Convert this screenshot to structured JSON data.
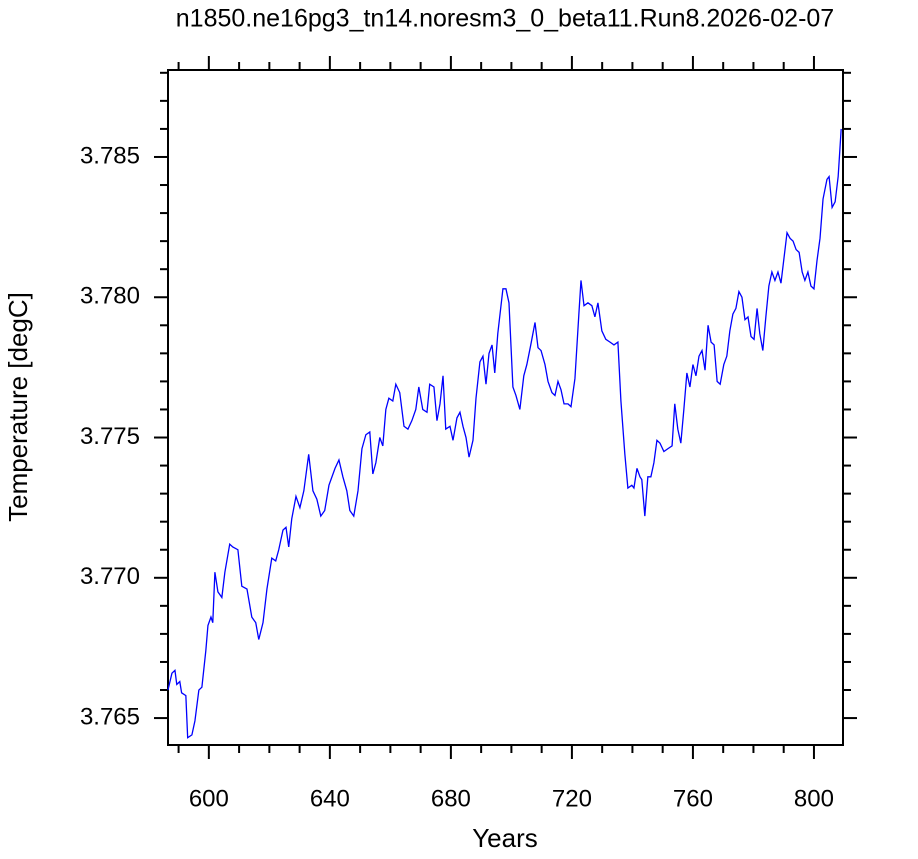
{
  "chart_data": {
    "type": "line",
    "title": "n1850.ne16pg3_tn14.noresm3_0_beta11.Run8.2026-02-07",
    "xlabel": "Years",
    "ylabel": "Temperature [degC]",
    "xlim": [
      586.5,
      809.6
    ],
    "ylim": [
      3.76404,
      3.7881
    ],
    "xticks": [
      600,
      640,
      680,
      720,
      760,
      800
    ],
    "yticks": [
      3.765,
      {
        "value": 3.77,
        "label": "3.770"
      },
      3.775,
      {
        "value": 3.78,
        "label": "3.780"
      },
      3.785
    ],
    "xminorticks": [
      590,
      610,
      620,
      630,
      650,
      660,
      670,
      690,
      700,
      710,
      730,
      740,
      750,
      770,
      780,
      790
    ],
    "yminorticks": [
      3.766,
      3.767,
      3.768,
      3.769,
      3.771,
      3.772,
      3.773,
      3.774,
      3.776,
      3.777,
      3.778,
      3.779,
      3.781,
      3.782,
      3.783,
      3.784,
      3.786,
      3.787,
      3.788
    ],
    "series": [
      {
        "color": "#0000ff",
        "x": [
          586.5,
          587.8,
          588.8,
          589.4,
          590.4,
          591,
          592.4,
          593,
          594.4,
          595.4,
          596.7,
          597.7,
          599,
          599.7,
          600.7,
          601.3,
          602,
          603,
          604.3,
          605.3,
          606.9,
          607.9,
          609.6,
          610.9,
          612.6,
          614.2,
          615.5,
          616.5,
          617.9,
          619.2,
          620.8,
          622.1,
          623.1,
          624.5,
          625.5,
          626.4,
          627.4,
          628.8,
          630.1,
          631.4,
          633,
          634.4,
          635.7,
          637,
          638.3,
          639.7,
          641.7,
          643,
          644.3,
          645.6,
          646.6,
          647.9,
          649.3,
          650.6,
          651.9,
          653.2,
          654.2,
          655.2,
          656.5,
          657.5,
          658.5,
          659.5,
          660.8,
          661.8,
          663.1,
          664.5,
          665.8,
          667.1,
          668.4,
          669.4,
          670.7,
          672.1,
          673,
          674.4,
          675.4,
          676.4,
          677.4,
          678.3,
          679.7,
          680.7,
          682,
          683,
          684,
          685,
          686,
          687.3,
          688.3,
          689.6,
          690.6,
          691.6,
          692.6,
          693.6,
          694.5,
          695.5,
          697.2,
          698.2,
          699.2,
          700.5,
          701.5,
          702.8,
          704.1,
          705.1,
          706.4,
          707.8,
          708.8,
          709.8,
          711.1,
          712.1,
          713.4,
          714.4,
          715.4,
          716.4,
          717.4,
          718.7,
          719.7,
          721,
          722.3,
          723,
          724,
          725.3,
          726.6,
          727.6,
          728.6,
          729.9,
          731.2,
          732.6,
          733.9,
          735.2,
          736.2,
          737.5,
          738.5,
          739.8,
          740.5,
          741.5,
          742.5,
          743.1,
          744.1,
          745.1,
          746.1,
          747.1,
          748.1,
          749.1,
          750.4,
          751.7,
          753.1,
          754,
          755,
          756,
          757,
          758,
          759,
          760,
          761,
          762,
          763,
          764,
          765,
          766,
          767,
          768,
          769,
          770.2,
          771.2,
          772.2,
          773.2,
          774.2,
          775.2,
          776.2,
          777.2,
          778.2,
          779.2,
          780.2,
          781.2,
          782.1,
          783.1,
          784.1,
          785.1,
          786.1,
          787.1,
          788.1,
          789.1,
          790.1,
          791.1,
          792.1,
          793.1,
          794.1,
          795.1,
          796.1,
          797,
          798,
          799,
          800,
          801,
          802,
          803,
          804.3,
          805,
          806,
          807,
          808,
          809
        ],
        "values": [
          3.766,
          3.7666,
          3.7667,
          3.7662,
          3.7663,
          3.7659,
          3.7658,
          3.7643,
          3.7644,
          3.7649,
          3.766,
          3.7661,
          3.7674,
          3.7683,
          3.7686,
          3.7684,
          3.7702,
          3.7695,
          3.7693,
          3.7702,
          3.7712,
          3.7711,
          3.771,
          3.7697,
          3.7696,
          3.7686,
          3.7684,
          3.7678,
          3.7684,
          3.7696,
          3.7707,
          3.7706,
          3.771,
          3.7717,
          3.7718,
          3.7711,
          3.7721,
          3.7729,
          3.7725,
          3.7731,
          3.7744,
          3.7731,
          3.7728,
          3.7722,
          3.7724,
          3.7733,
          3.7739,
          3.7742,
          3.7736,
          3.7731,
          3.7724,
          3.7722,
          3.7731,
          3.7746,
          3.7751,
          3.7752,
          3.7737,
          3.7741,
          3.775,
          3.7747,
          3.776,
          3.7764,
          3.7763,
          3.7769,
          3.7766,
          3.7754,
          3.7753,
          3.7756,
          3.776,
          3.7768,
          3.776,
          3.7759,
          3.7769,
          3.7768,
          3.7756,
          3.7762,
          3.7772,
          3.7753,
          3.7754,
          3.7749,
          3.7757,
          3.7759,
          3.7754,
          3.775,
          3.7743,
          3.7749,
          3.7764,
          3.7777,
          3.7779,
          3.7769,
          3.778,
          3.7783,
          3.7773,
          3.7787,
          3.7803,
          3.7803,
          3.7798,
          3.7768,
          3.7765,
          3.776,
          3.7772,
          3.7776,
          3.7783,
          3.7791,
          3.7782,
          3.7781,
          3.7776,
          3.777,
          3.7766,
          3.7765,
          3.777,
          3.7767,
          3.7762,
          3.7762,
          3.7761,
          3.7771,
          3.7794,
          3.7806,
          3.7797,
          3.7798,
          3.7797,
          3.7793,
          3.7798,
          3.7788,
          3.7785,
          3.7784,
          3.7783,
          3.7784,
          3.7763,
          3.7744,
          3.7732,
          3.7733,
          3.7732,
          3.7739,
          3.7736,
          3.7735,
          3.7722,
          3.7736,
          3.7736,
          3.7741,
          3.7749,
          3.7748,
          3.7745,
          3.7746,
          3.7747,
          3.7762,
          3.7753,
          3.7748,
          3.776,
          3.7773,
          3.7768,
          3.7776,
          3.7772,
          3.7779,
          3.7781,
          3.7774,
          3.779,
          3.7784,
          3.7783,
          3.777,
          3.7769,
          3.7776,
          3.7779,
          3.7788,
          3.7794,
          3.7796,
          3.7802,
          3.78,
          3.7792,
          3.7793,
          3.7786,
          3.7785,
          3.7796,
          3.7787,
          3.7781,
          3.7793,
          3.7804,
          3.7809,
          3.7806,
          3.7809,
          3.7805,
          3.7814,
          3.7823,
          3.7821,
          3.782,
          3.7817,
          3.7816,
          3.7809,
          3.7806,
          3.7809,
          3.7804,
          3.7803,
          3.7813,
          3.7821,
          3.7835,
          3.7842,
          3.7843,
          3.7832,
          3.7834,
          3.7843,
          3.786
        ]
      }
    ]
  }
}
